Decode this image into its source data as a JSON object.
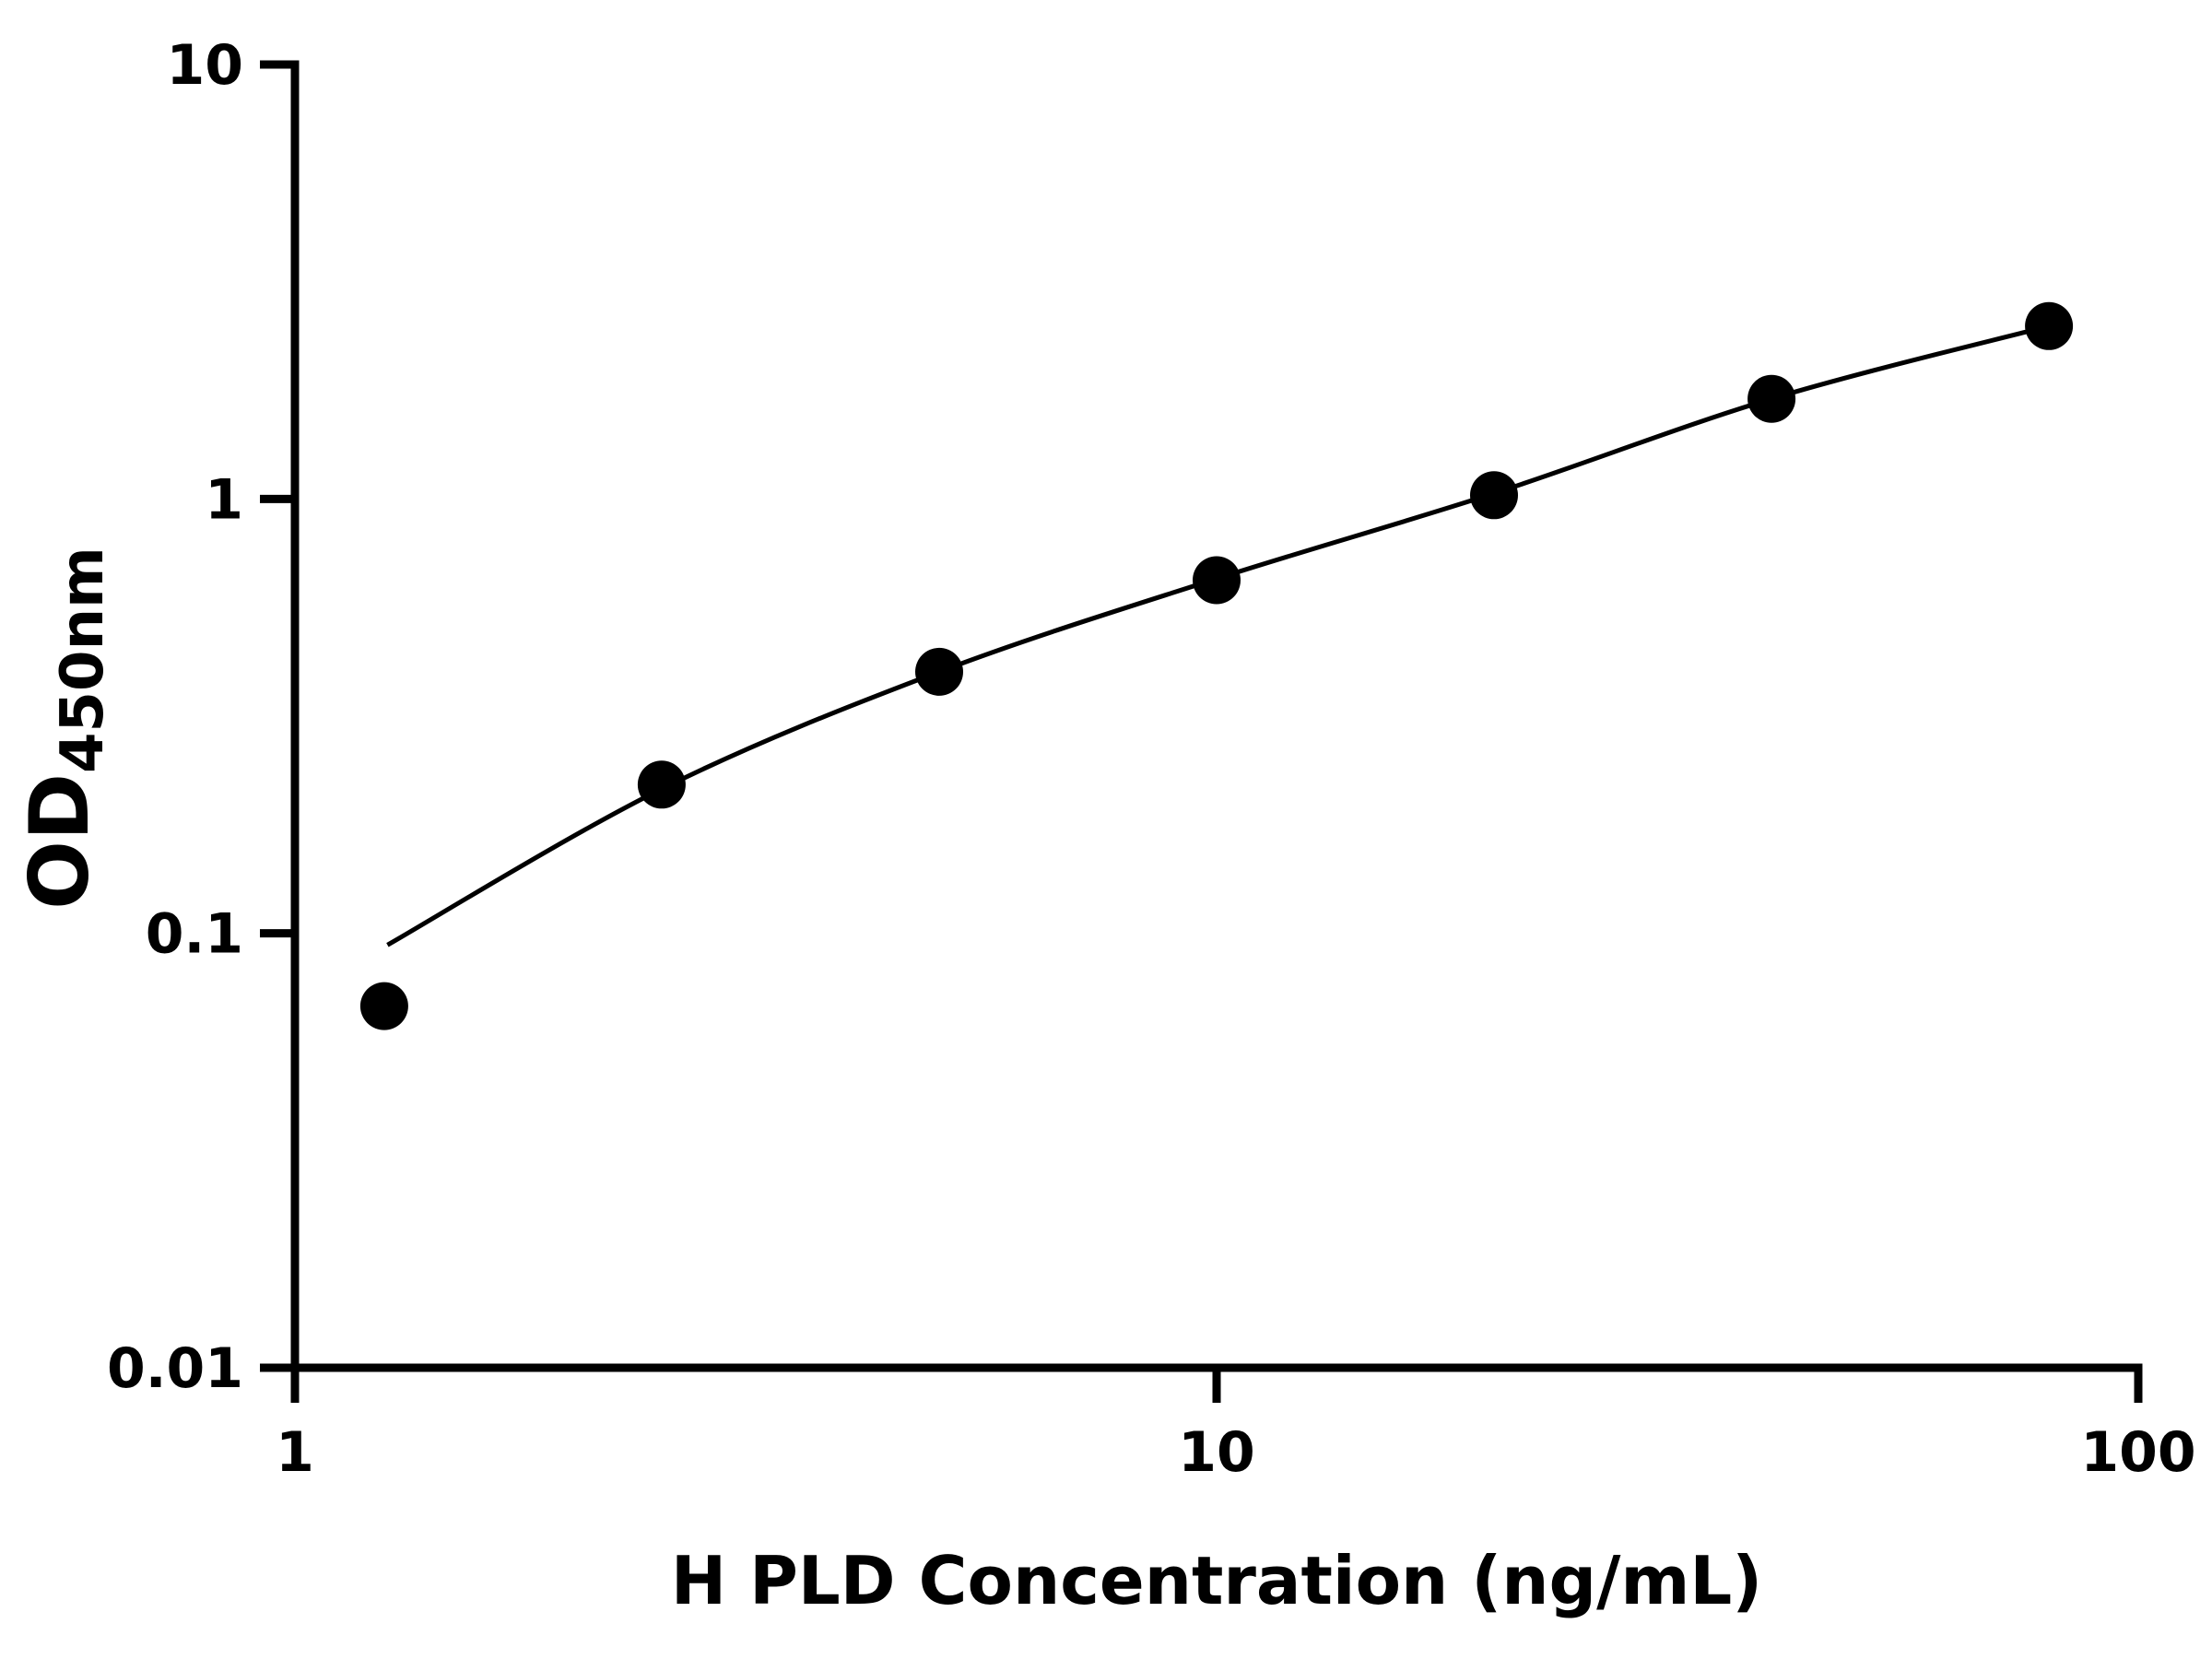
{
  "chart_data": {
    "type": "scatter",
    "title": "",
    "xlabel": "H PLD Concentration (ng/mL)",
    "ylabel_main": "OD",
    "ylabel_sub": "450nm",
    "x_scale": "log",
    "y_scale": "log",
    "xlim": [
      1,
      100
    ],
    "ylim": [
      0.01,
      10
    ],
    "grid": "off",
    "legend": "none",
    "x_ticks": [
      1,
      10,
      100
    ],
    "x_tick_labels": [
      "1",
      "10",
      "100"
    ],
    "y_ticks": [
      0.01,
      0.1,
      1,
      10
    ],
    "y_tick_labels": [
      "0.01",
      "0.1",
      "1",
      "10"
    ],
    "points": [
      {
        "x": 1.25,
        "y": 0.068
      },
      {
        "x": 2.5,
        "y": 0.22
      },
      {
        "x": 5,
        "y": 0.4
      },
      {
        "x": 10,
        "y": 0.65
      },
      {
        "x": 20,
        "y": 1.02
      },
      {
        "x": 40,
        "y": 1.7
      },
      {
        "x": 80,
        "y": 2.5
      }
    ],
    "fit_curve": [
      {
        "x": 1.26,
        "y": 0.094
      },
      {
        "x": 2.5,
        "y": 0.215
      },
      {
        "x": 5,
        "y": 0.4
      },
      {
        "x": 10,
        "y": 0.655
      },
      {
        "x": 20,
        "y": 1.03
      },
      {
        "x": 40,
        "y": 1.7
      },
      {
        "x": 80,
        "y": 2.5
      }
    ],
    "colors": {
      "point": "#000000",
      "line": "#000000",
      "axis": "#000000",
      "background": "#ffffff"
    }
  }
}
